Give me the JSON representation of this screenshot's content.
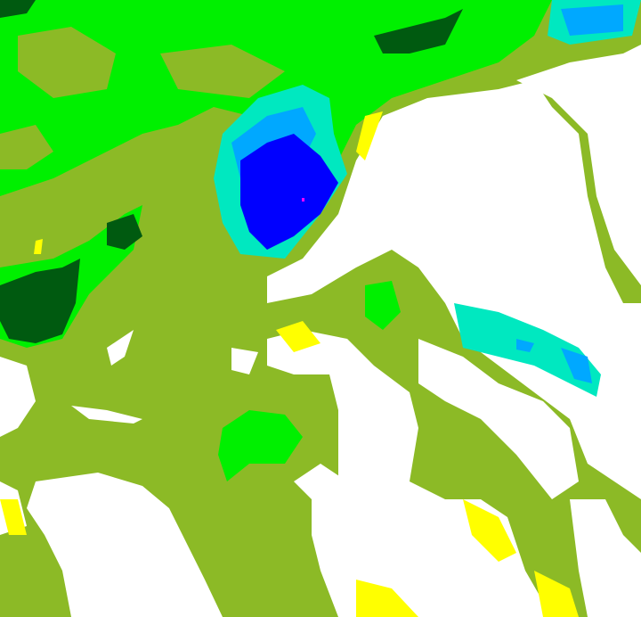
{
  "map": {
    "type": "classified raster",
    "colors": {
      "base": "#8cba26",
      "bright_green": "#00f000",
      "dark_green": "#005a10",
      "white": "#ffffff",
      "yellow": "#ffff00",
      "blue": "#0000ff",
      "cyan": "#00e8c0",
      "light_blue": "#00a8ff"
    }
  }
}
